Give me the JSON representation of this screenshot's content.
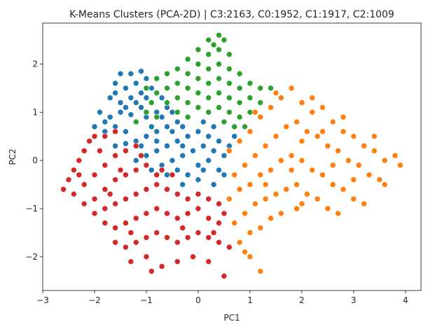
{
  "chart_data": {
    "type": "scatter",
    "title": "K-Means Clusters (PCA-2D)  |  C3:2163, C0:1952, C1:1917, C2:1009",
    "xlabel": "PC1",
    "ylabel": "PC2",
    "xlim": [
      -3,
      4.3
    ],
    "ylim": [
      -2.7,
      2.85
    ],
    "xticks": [
      -3,
      -2,
      -1,
      0,
      1,
      2,
      3,
      4
    ],
    "yticks": [
      -2,
      -1,
      0,
      1,
      2
    ],
    "grid": false,
    "legend": "none",
    "marker_edge_color": "#ffffff",
    "series": [
      {
        "cluster": "C0",
        "count": 1952,
        "color": "#1f77b4",
        "points": [
          [
            -1.5,
            1.8
          ],
          [
            -1.3,
            1.8
          ],
          [
            -1.1,
            1.85
          ],
          [
            -1.6,
            1.6
          ],
          [
            -1.4,
            1.5
          ],
          [
            -1.2,
            1.6
          ],
          [
            -1.0,
            1.7
          ],
          [
            -1.7,
            1.3
          ],
          [
            -1.5,
            1.2
          ],
          [
            -1.3,
            1.3
          ],
          [
            -1.1,
            1.4
          ],
          [
            -0.9,
            1.5
          ],
          [
            -1.9,
            1.0
          ],
          [
            -1.7,
            0.9
          ],
          [
            -1.5,
            1.0
          ],
          [
            -1.3,
            0.95
          ],
          [
            -1.1,
            1.1
          ],
          [
            -0.9,
            1.2
          ],
          [
            -0.7,
            1.3
          ],
          [
            -2.0,
            0.7
          ],
          [
            -1.8,
            0.6
          ],
          [
            -1.6,
            0.7
          ],
          [
            -1.4,
            0.6
          ],
          [
            -1.2,
            0.8
          ],
          [
            -1.0,
            0.9
          ],
          [
            -0.8,
            1.0
          ],
          [
            -0.6,
            1.1
          ],
          [
            -1.6,
            0.3
          ],
          [
            -1.4,
            0.35
          ],
          [
            -1.2,
            0.4
          ],
          [
            -1.0,
            0.5
          ],
          [
            -0.8,
            0.6
          ],
          [
            -0.6,
            0.7
          ],
          [
            -0.4,
            0.8
          ],
          [
            -0.2,
            0.9
          ],
          [
            -1.2,
            0.0
          ],
          [
            -1.0,
            0.1
          ],
          [
            -0.8,
            0.2
          ],
          [
            -0.6,
            0.3
          ],
          [
            -0.4,
            0.4
          ],
          [
            -0.2,
            0.5
          ],
          [
            0.0,
            0.6
          ],
          [
            0.2,
            0.5
          ],
          [
            0.4,
            0.4
          ],
          [
            -0.9,
            -0.2
          ],
          [
            -0.7,
            -0.1
          ],
          [
            -0.5,
            0.0
          ],
          [
            -0.3,
            0.1
          ],
          [
            -0.1,
            0.2
          ],
          [
            0.1,
            0.3
          ],
          [
            0.3,
            0.2
          ],
          [
            0.5,
            0.1
          ],
          [
            -0.6,
            -0.3
          ],
          [
            -0.4,
            -0.2
          ],
          [
            -0.2,
            -0.3
          ],
          [
            0.0,
            -0.1
          ],
          [
            0.2,
            0.0
          ],
          [
            0.4,
            -0.2
          ],
          [
            0.6,
            0.3
          ],
          [
            0.7,
            0.5
          ],
          [
            -0.3,
            -0.5
          ],
          [
            0.0,
            -0.4
          ],
          [
            0.3,
            -0.5
          ],
          [
            0.5,
            -0.3
          ],
          [
            -0.5,
            0.6
          ],
          [
            -0.3,
            0.7
          ],
          [
            -0.7,
            0.9
          ],
          [
            -0.9,
            0.7
          ],
          [
            -1.1,
            0.3
          ],
          [
            -0.8,
            0.4
          ],
          [
            0.1,
            0.8
          ],
          [
            0.3,
            0.7
          ],
          [
            -1.4,
            1.1
          ],
          [
            -1.2,
            1.2
          ],
          [
            -0.5,
            1.0
          ],
          [
            -0.3,
            0.3
          ],
          [
            0.1,
            -0.2
          ],
          [
            -1.8,
            0.8
          ],
          [
            -1.6,
            1.4
          ],
          [
            -1.0,
            1.3
          ]
        ]
      },
      {
        "cluster": "C1",
        "count": 1917,
        "color": "#ff7f0e",
        "points": [
          [
            0.6,
            0.2
          ],
          [
            0.8,
            0.4
          ],
          [
            1.0,
            0.6
          ],
          [
            1.2,
            0.9
          ],
          [
            1.4,
            1.1
          ],
          [
            1.6,
            1.3
          ],
          [
            1.8,
            1.5
          ],
          [
            2.0,
            1.2
          ],
          [
            2.2,
            1.0
          ],
          [
            2.4,
            1.1
          ],
          [
            2.6,
            0.8
          ],
          [
            2.8,
            0.6
          ],
          [
            3.0,
            0.5
          ],
          [
            3.2,
            0.3
          ],
          [
            3.4,
            0.2
          ],
          [
            3.6,
            0.0
          ],
          [
            3.8,
            0.1
          ],
          [
            3.9,
            -0.1
          ],
          [
            0.7,
            -0.3
          ],
          [
            0.9,
            -0.1
          ],
          [
            1.1,
            0.1
          ],
          [
            1.3,
            0.3
          ],
          [
            1.5,
            0.5
          ],
          [
            1.7,
            0.7
          ],
          [
            1.9,
            0.8
          ],
          [
            2.1,
            0.6
          ],
          [
            2.3,
            0.5
          ],
          [
            2.5,
            0.3
          ],
          [
            2.7,
            0.2
          ],
          [
            2.9,
            0.0
          ],
          [
            3.1,
            -0.1
          ],
          [
            3.3,
            -0.3
          ],
          [
            3.5,
            -0.4
          ],
          [
            0.6,
            -0.8
          ],
          [
            0.8,
            -0.6
          ],
          [
            1.0,
            -0.5
          ],
          [
            1.2,
            -0.3
          ],
          [
            1.4,
            -0.2
          ],
          [
            1.6,
            0.0
          ],
          [
            1.8,
            0.1
          ],
          [
            2.0,
            0.0
          ],
          [
            2.2,
            -0.2
          ],
          [
            2.4,
            -0.3
          ],
          [
            2.6,
            -0.5
          ],
          [
            2.8,
            -0.6
          ],
          [
            3.0,
            -0.8
          ],
          [
            3.2,
            -0.9
          ],
          [
            0.7,
            -1.3
          ],
          [
            0.9,
            -1.1
          ],
          [
            1.1,
            -0.9
          ],
          [
            1.3,
            -0.8
          ],
          [
            1.5,
            -0.7
          ],
          [
            1.7,
            -0.6
          ],
          [
            1.9,
            -0.5
          ],
          [
            2.1,
            -0.7
          ],
          [
            2.3,
            -0.8
          ],
          [
            2.5,
            -1.0
          ],
          [
            2.7,
            -1.1
          ],
          [
            0.8,
            -1.7
          ],
          [
            1.0,
            -1.5
          ],
          [
            1.2,
            -1.4
          ],
          [
            1.4,
            -1.2
          ],
          [
            1.6,
            -1.1
          ],
          [
            1.9,
            -1.0
          ],
          [
            1.0,
            -2.0
          ],
          [
            1.2,
            -2.3
          ],
          [
            0.9,
            -1.9
          ],
          [
            2.0,
            0.4
          ],
          [
            2.4,
            0.6
          ],
          [
            2.8,
            0.9
          ],
          [
            3.4,
            0.5
          ],
          [
            2.2,
            1.3
          ],
          [
            1.5,
            1.4
          ],
          [
            1.1,
            1.0
          ],
          [
            1.8,
            -0.2
          ],
          [
            2.6,
            -0.1
          ],
          [
            3.0,
            -0.4
          ],
          [
            3.6,
            -0.5
          ],
          [
            1.3,
            -0.5
          ],
          [
            2.0,
            -0.9
          ]
        ]
      },
      {
        "cluster": "C2",
        "count": 1009,
        "color": "#2ca02c",
        "points": [
          [
            0.2,
            2.5
          ],
          [
            0.4,
            2.6
          ],
          [
            0.5,
            2.5
          ],
          [
            0.0,
            2.3
          ],
          [
            0.2,
            2.2
          ],
          [
            0.4,
            2.3
          ],
          [
            0.6,
            2.2
          ],
          [
            -0.2,
            2.1
          ],
          [
            0.0,
            2.0
          ],
          [
            0.2,
            1.9
          ],
          [
            0.4,
            2.0
          ],
          [
            0.6,
            1.9
          ],
          [
            0.8,
            1.8
          ],
          [
            -0.4,
            1.9
          ],
          [
            -0.2,
            1.8
          ],
          [
            0.0,
            1.7
          ],
          [
            0.2,
            1.6
          ],
          [
            0.4,
            1.7
          ],
          [
            0.6,
            1.6
          ],
          [
            0.8,
            1.5
          ],
          [
            1.0,
            1.6
          ],
          [
            1.2,
            1.5
          ],
          [
            1.4,
            1.5
          ],
          [
            -0.6,
            1.8
          ],
          [
            -0.4,
            1.6
          ],
          [
            -0.2,
            1.5
          ],
          [
            0.0,
            1.4
          ],
          [
            0.2,
            1.3
          ],
          [
            0.4,
            1.4
          ],
          [
            0.6,
            1.3
          ],
          [
            0.8,
            1.2
          ],
          [
            1.0,
            1.3
          ],
          [
            1.2,
            1.2
          ],
          [
            -0.8,
            1.7
          ],
          [
            -0.6,
            1.5
          ],
          [
            -0.4,
            1.3
          ],
          [
            -0.2,
            1.2
          ],
          [
            0.0,
            1.1
          ],
          [
            0.2,
            1.0
          ],
          [
            0.4,
            1.1
          ],
          [
            0.6,
            1.0
          ],
          [
            0.8,
            0.9
          ],
          [
            1.0,
            1.0
          ],
          [
            -1.0,
            1.5
          ],
          [
            -0.8,
            1.4
          ],
          [
            -0.6,
            1.2
          ],
          [
            -0.4,
            1.0
          ],
          [
            -0.2,
            0.9
          ],
          [
            0.5,
            0.8
          ],
          [
            0.7,
            0.7
          ],
          [
            -1.0,
            1.0
          ],
          [
            -0.8,
            0.9
          ],
          [
            -1.2,
            0.8
          ],
          [
            -0.9,
            1.2
          ],
          [
            0.9,
            0.7
          ],
          [
            0.3,
            2.4
          ]
        ]
      },
      {
        "cluster": "C3",
        "count": 2163,
        "color": "#d62728",
        "points": [
          [
            -2.6,
            -0.6
          ],
          [
            -2.5,
            -0.4
          ],
          [
            -2.4,
            -0.2
          ],
          [
            -2.3,
            0.0
          ],
          [
            -2.2,
            0.2
          ],
          [
            -2.1,
            0.4
          ],
          [
            -2.0,
            0.5
          ],
          [
            -1.8,
            0.5
          ],
          [
            -1.6,
            0.6
          ],
          [
            -2.4,
            -0.7
          ],
          [
            -2.2,
            -0.5
          ],
          [
            -2.0,
            -0.3
          ],
          [
            -1.8,
            -0.1
          ],
          [
            -1.6,
            0.1
          ],
          [
            -1.4,
            0.2
          ],
          [
            -1.2,
            0.3
          ],
          [
            -2.2,
            -0.9
          ],
          [
            -2.0,
            -0.8
          ],
          [
            -1.8,
            -0.6
          ],
          [
            -1.6,
            -0.4
          ],
          [
            -1.4,
            -0.3
          ],
          [
            -1.2,
            -0.2
          ],
          [
            -1.0,
            -0.1
          ],
          [
            -0.8,
            -0.3
          ],
          [
            -2.0,
            -1.1
          ],
          [
            -1.8,
            -1.0
          ],
          [
            -1.6,
            -0.9
          ],
          [
            -1.4,
            -0.8
          ],
          [
            -1.2,
            -0.7
          ],
          [
            -1.0,
            -0.6
          ],
          [
            -0.8,
            -0.5
          ],
          [
            -0.6,
            -0.6
          ],
          [
            -0.4,
            -0.7
          ],
          [
            -0.2,
            -0.8
          ],
          [
            0.0,
            -0.7
          ],
          [
            0.2,
            -0.8
          ],
          [
            0.4,
            -0.9
          ],
          [
            -1.8,
            -1.3
          ],
          [
            -1.6,
            -1.4
          ],
          [
            -1.4,
            -1.3
          ],
          [
            -1.2,
            -1.2
          ],
          [
            -1.0,
            -1.1
          ],
          [
            -0.8,
            -1.0
          ],
          [
            -0.6,
            -1.1
          ],
          [
            -0.4,
            -1.2
          ],
          [
            -0.2,
            -1.1
          ],
          [
            0.0,
            -1.0
          ],
          [
            0.2,
            -1.2
          ],
          [
            0.4,
            -1.3
          ],
          [
            0.5,
            -1.1
          ],
          [
            -1.6,
            -1.7
          ],
          [
            -1.4,
            -1.8
          ],
          [
            -1.2,
            -1.7
          ],
          [
            -1.0,
            -1.6
          ],
          [
            -0.8,
            -1.5
          ],
          [
            -0.6,
            -1.6
          ],
          [
            -0.4,
            -1.7
          ],
          [
            -0.2,
            -1.6
          ],
          [
            0.0,
            -1.5
          ],
          [
            0.2,
            -1.6
          ],
          [
            0.4,
            -1.7
          ],
          [
            -1.3,
            -2.1
          ],
          [
            -1.0,
            -2.0
          ],
          [
            -0.7,
            -2.2
          ],
          [
            -0.4,
            -2.1
          ],
          [
            -0.1,
            -2.0
          ],
          [
            0.2,
            -2.1
          ],
          [
            0.5,
            -2.4
          ],
          [
            -0.9,
            -2.3
          ],
          [
            -1.5,
            -0.2
          ],
          [
            -1.1,
            0.1
          ],
          [
            -0.7,
            -0.2
          ],
          [
            -0.5,
            -0.3
          ],
          [
            -1.7,
            -0.7
          ],
          [
            -0.3,
            -1.4
          ],
          [
            0.3,
            -1.5
          ],
          [
            0.6,
            -1.8
          ],
          [
            -2.3,
            -0.3
          ],
          [
            -1.9,
            0.2
          ],
          [
            -1.3,
            -1.5
          ]
        ]
      }
    ]
  }
}
